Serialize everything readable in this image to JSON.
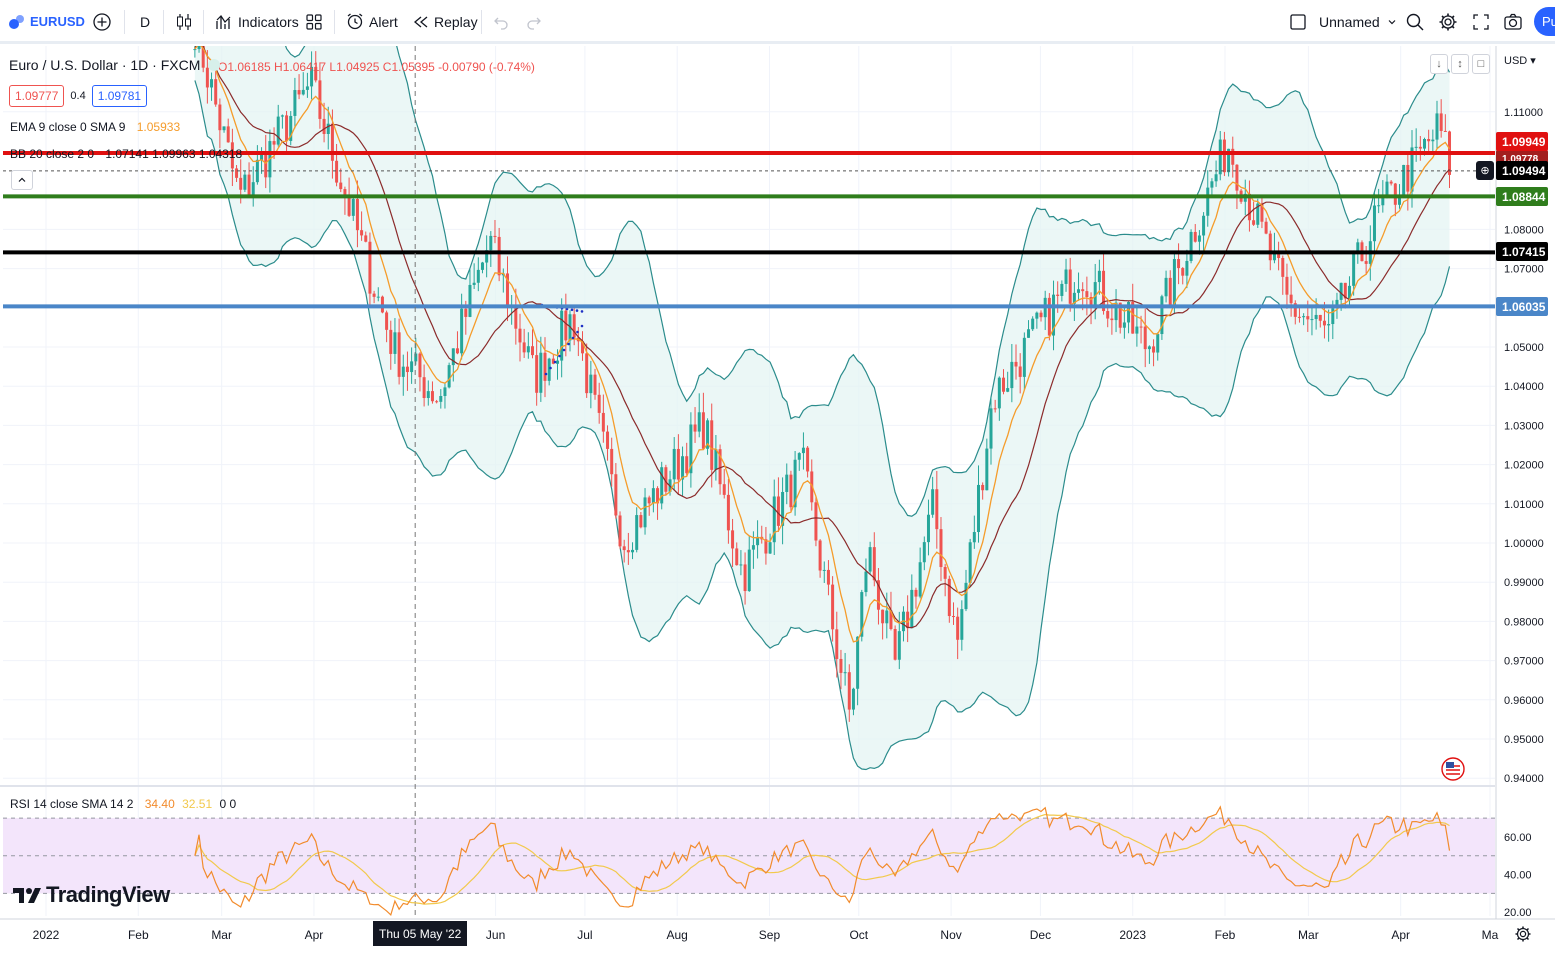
{
  "toolbar": {
    "symbol": "EURUSD",
    "interval": "D",
    "indicators_label": "Indicators",
    "alert_label": "Alert",
    "replay_label": "Replay",
    "layout_name": "Unnamed",
    "publish_label": "Pu"
  },
  "legend": {
    "title": "Euro / U.S. Dollar · 1D · FXCM",
    "ohlc": "O1.06185 H1.06417 L1.04925 C1.05395 -0.00790 (-0.74%)",
    "bid": "1.09777",
    "spread": "0.4",
    "ask": "1.09781",
    "ema_label": "EMA 9 close 0 SMA 9",
    "ema_value": "1.05933",
    "bb_label": "BB 20 close 2 0",
    "bb_values": "1.07141  1.09963  1.04318",
    "rsi_label": "RSI 14 close SMA 14 2",
    "rsi_value": "34.40",
    "rsi_sma_value": "32.51",
    "rsi_extra": "0  0"
  },
  "currency": "USD",
  "crosshair_label": "Thu 05 May '22",
  "watermark": "TradingView",
  "price_labels": {
    "red": "1.09949",
    "last": "1.09494",
    "green": "1.08844",
    "black": "1.07415",
    "blue": "1.06035",
    "hidden": "1.09778"
  },
  "colors": {
    "candle_up": "#26a69a",
    "candle_down": "#ef5350",
    "ema": "#f59c2b",
    "bb_basis": "#8b2b2b",
    "bb_band": "#2b8c8c",
    "line_red": "#e01010",
    "line_green": "#2f7d1c",
    "line_black": "#000000",
    "line_blue": "#4a86c8",
    "rsi_line": "#f28b2c",
    "rsi_sma": "#f2c94c"
  },
  "chart_data": {
    "type": "candlestick",
    "symbol": "Euro / U.S. Dollar",
    "timeframe": "1D",
    "x_ticks": [
      "2022",
      "Feb",
      "Mar",
      "Apr",
      "Jun",
      "Jul",
      "Aug",
      "Sep",
      "Oct",
      "Nov",
      "Dec",
      "2023",
      "Feb",
      "Mar",
      "Apr",
      "Ma"
    ],
    "y_ticks": [
      "1.11000",
      "1.08000",
      "1.07000",
      "1.05000",
      "1.04000",
      "1.03000",
      "1.02000",
      "1.01000",
      "1.00000",
      "0.99000",
      "0.98000",
      "0.97000",
      "0.96000",
      "0.95000",
      "0.94000"
    ],
    "ylim": [
      0.935,
      1.12
    ],
    "horizontal_lines": [
      {
        "name": "red",
        "value": 1.09949
      },
      {
        "name": "green",
        "value": 1.08844
      },
      {
        "name": "black",
        "value": 1.07415
      },
      {
        "name": "blue",
        "value": 1.06035
      }
    ],
    "last_price": 1.09494,
    "price_path": [
      {
        "x": "Feb 20 2022",
        "y": 1.132
      },
      {
        "x": "Mar 07 2022",
        "y": 1.088
      },
      {
        "x": "Mar 31 2022",
        "y": 1.117
      },
      {
        "x": "Apr 28 2022",
        "y": 1.049
      },
      {
        "x": "May 13 2022",
        "y": 1.037
      },
      {
        "x": "May 30 2022",
        "y": 1.077
      },
      {
        "x": "Jun 14 2022",
        "y": 1.042
      },
      {
        "x": "Jun 27 2022",
        "y": 1.058
      },
      {
        "x": "Jul 14 2022",
        "y": 1.001
      },
      {
        "x": "Aug 10 2022",
        "y": 1.03
      },
      {
        "x": "Aug 23 2022",
        "y": 0.992
      },
      {
        "x": "Sep 12 2022",
        "y": 1.02
      },
      {
        "x": "Sep 28 2022",
        "y": 0.956
      },
      {
        "x": "Oct 04 2022",
        "y": 0.999
      },
      {
        "x": "Oct 13 2022",
        "y": 0.968
      },
      {
        "x": "Oct 26 2022",
        "y": 1.009
      },
      {
        "x": "Nov 03 2022",
        "y": 0.974
      },
      {
        "x": "Nov 15 2022",
        "y": 1.037
      },
      {
        "x": "Dec 14 2022",
        "y": 1.07
      },
      {
        "x": "Jan 06 2023",
        "y": 1.05
      },
      {
        "x": "Feb 02 2023",
        "y": 1.102
      },
      {
        "x": "Feb 22 2023",
        "y": 1.061
      },
      {
        "x": "Mar 08 2023",
        "y": 1.053
      },
      {
        "x": "Mar 24 2023",
        "y": 1.083
      },
      {
        "x": "Apr 14 2023",
        "y": 1.106
      },
      {
        "x": "Apr 18 2023",
        "y": 1.095
      }
    ],
    "rsi_ticks": [
      "60.00",
      "40.00",
      "20.00"
    ],
    "rsi_ylim": [
      18,
      78
    ],
    "rsi_band": [
      30,
      70
    ]
  }
}
